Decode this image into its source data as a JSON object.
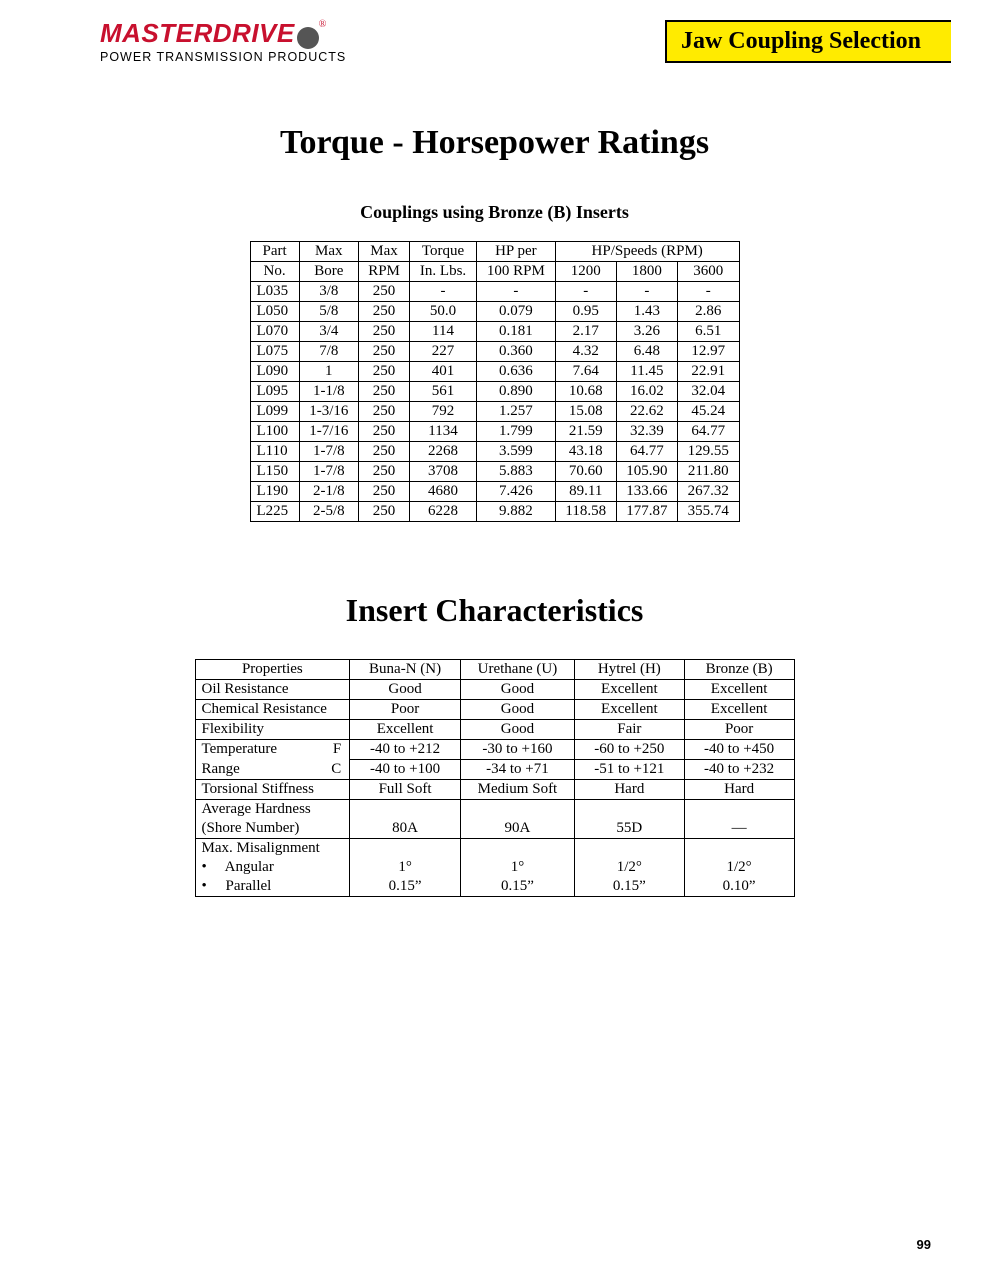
{
  "header": {
    "logo_main": "MASTERDRIVE",
    "logo_reg": "®",
    "logo_sub": "POWER TRANSMISSION PRODUCTS",
    "banner": "Jaw Coupling Selection"
  },
  "title1": "Torque - Horsepower Ratings",
  "subtitle1": "Couplings using Bronze (B) Inserts",
  "ratings": {
    "head_group_hp": "HP/Speeds (RPM)",
    "head": {
      "part1": "Part",
      "part2": "No.",
      "bore1": "Max",
      "bore2": "Bore",
      "rpm1": "Max",
      "rpm2": "RPM",
      "torque1": "Torque",
      "torque2": "In. Lbs.",
      "hp1": "HP per",
      "hp2": "100 RPM",
      "s1200": "1200",
      "s1800": "1800",
      "s3600": "3600"
    },
    "rows": [
      {
        "p": "L035",
        "b": "3/8",
        "r": "250",
        "t": "-",
        "h": "-",
        "s1": "-",
        "s2": "-",
        "s3": "-"
      },
      {
        "p": "L050",
        "b": "5/8",
        "r": "250",
        "t": "50.0",
        "h": "0.079",
        "s1": "0.95",
        "s2": "1.43",
        "s3": "2.86"
      },
      {
        "p": "L070",
        "b": "3/4",
        "r": "250",
        "t": "114",
        "h": "0.181",
        "s1": "2.17",
        "s2": "3.26",
        "s3": "6.51"
      },
      {
        "p": "L075",
        "b": "7/8",
        "r": "250",
        "t": "227",
        "h": "0.360",
        "s1": "4.32",
        "s2": "6.48",
        "s3": "12.97"
      },
      {
        "p": "L090",
        "b": "1",
        "r": "250",
        "t": "401",
        "h": "0.636",
        "s1": "7.64",
        "s2": "11.45",
        "s3": "22.91"
      },
      {
        "p": "L095",
        "b": "1-1/8",
        "r": "250",
        "t": "561",
        "h": "0.890",
        "s1": "10.68",
        "s2": "16.02",
        "s3": "32.04"
      },
      {
        "p": "L099",
        "b": "1-3/16",
        "r": "250",
        "t": "792",
        "h": "1.257",
        "s1": "15.08",
        "s2": "22.62",
        "s3": "45.24"
      },
      {
        "p": "L100",
        "b": "1-7/16",
        "r": "250",
        "t": "1134",
        "h": "1.799",
        "s1": "21.59",
        "s2": "32.39",
        "s3": "64.77"
      },
      {
        "p": "L110",
        "b": "1-7/8",
        "r": "250",
        "t": "2268",
        "h": "3.599",
        "s1": "43.18",
        "s2": "64.77",
        "s3": "129.55"
      },
      {
        "p": "L150",
        "b": "1-7/8",
        "r": "250",
        "t": "3708",
        "h": "5.883",
        "s1": "70.60",
        "s2": "105.90",
        "s3": "211.80"
      },
      {
        "p": "L190",
        "b": "2-1/8",
        "r": "250",
        "t": "4680",
        "h": "7.426",
        "s1": "89.11",
        "s2": "133.66",
        "s3": "267.32"
      },
      {
        "p": "L225",
        "b": "2-5/8",
        "r": "250",
        "t": "6228",
        "h": "9.882",
        "s1": "118.58",
        "s2": "177.87",
        "s3": "355.74"
      }
    ]
  },
  "title2": "Insert Characteristics",
  "insert": {
    "head": {
      "prop": "Properties",
      "n": "Buna-N (N)",
      "u": "Urethane (U)",
      "h": "Hytrel (H)",
      "b": "Bronze (B)"
    },
    "rows": {
      "oil": {
        "p": "Oil Resistance",
        "n": "Good",
        "u": "Good",
        "h": "Excellent",
        "b": "Excellent"
      },
      "chem": {
        "p": "Chemical Resistance",
        "n": "Poor",
        "u": "Good",
        "h": "Excellent",
        "b": "Excellent"
      },
      "flex": {
        "p": "Flexibility",
        "n": "Excellent",
        "u": "Good",
        "h": "Fair",
        "b": "Poor"
      },
      "tempF": {
        "p1": "Temperature",
        "p2": "F",
        "n": "-40 to +212",
        "u": "-30 to +160",
        "h": "-60 to +250",
        "b": "-40 to +450"
      },
      "tempC": {
        "p1": "Range",
        "p2": "C",
        "n": "-40 to +100",
        "u": "-34 to +71",
        "h": "-51 to +121",
        "b": "-40 to +232"
      },
      "tors": {
        "p": "Torsional Stiffness",
        "n": "Full Soft",
        "u": "Medium Soft",
        "h": "Hard",
        "b": "Hard"
      },
      "hard1": {
        "p": "Average Hardness"
      },
      "hard2": {
        "p": "(Shore Number)",
        "n": "80A",
        "u": "90A",
        "h": "55D",
        "b": "—"
      },
      "mis0": {
        "p": "Max. Misalignment"
      },
      "mis1": {
        "p": "•     Angular",
        "n": "1°",
        "u": "1°",
        "h": "1/2°",
        "b": "1/2°"
      },
      "mis2": {
        "p": "•     Parallel",
        "n": "0.15”",
        "u": "0.15”",
        "h": "0.15”",
        "b": "0.10”"
      }
    }
  },
  "page_number": "99"
}
